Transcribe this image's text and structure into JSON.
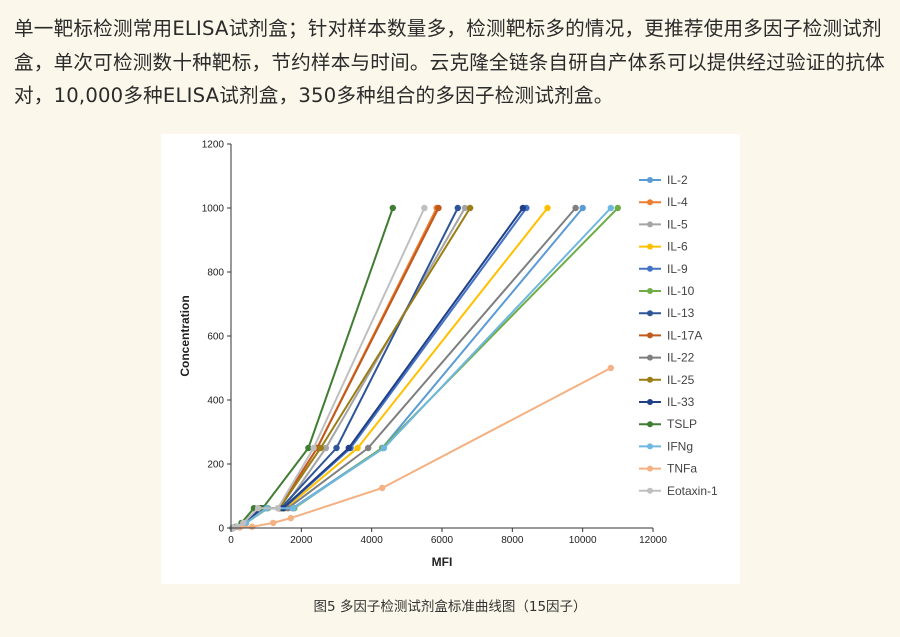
{
  "article": {
    "paragraph": "单一靶标检测常用ELISA试剂盒；针对样本数量多，检测靶标多的情况，更推荐使用多因子检测试剂盒，单次可检测数十种靶标，节约样本与时间。云克隆全链条自研自产体系可以提供经过验证的抗体对，10,000多种ELISA试剂盒，350多种组合的多因子检测试剂盒。"
  },
  "figure": {
    "caption": "图5 多因子检测试剂盒标准曲线图（15因子）"
  },
  "chart_data": {
    "type": "line",
    "title": "",
    "xlabel": "MFI",
    "ylabel": "Concentration",
    "xlim": [
      0,
      12000
    ],
    "ylim": [
      0,
      1200
    ],
    "x_ticks": [
      "0",
      "2000",
      "4000",
      "6000",
      "8000",
      "10000",
      "12000"
    ],
    "y_ticks": [
      "0",
      "200",
      "400",
      "600",
      "800",
      "1000",
      "1200"
    ],
    "legend_position": "right",
    "grid": false,
    "series": [
      {
        "name": "IL-2",
        "color": "#5b9bd5",
        "x": [
          60,
          200,
          420,
          1000,
          1750,
          4300,
          10000
        ],
        "y": [
          0,
          4,
          16,
          62,
          62,
          250,
          1000
        ]
      },
      {
        "name": "IL-4",
        "color": "#ed7d31",
        "x": [
          50,
          170,
          360,
          780,
          1350,
          2450,
          5850
        ],
        "y": [
          0,
          4,
          16,
          62,
          62,
          250,
          1000
        ]
      },
      {
        "name": "IL-5",
        "color": "#a5a5a5",
        "x": [
          55,
          180,
          380,
          850,
          1500,
          2700,
          6650
        ],
        "y": [
          0,
          4,
          16,
          62,
          62,
          250,
          1000
        ]
      },
      {
        "name": "IL-6",
        "color": "#ffc000",
        "x": [
          60,
          190,
          400,
          900,
          1550,
          3600,
          9000
        ],
        "y": [
          0,
          4,
          16,
          62,
          62,
          250,
          1000
        ]
      },
      {
        "name": "IL-9",
        "color": "#4472c4",
        "x": [
          55,
          180,
          390,
          880,
          1500,
          3400,
          8400
        ],
        "y": [
          0,
          4,
          16,
          62,
          62,
          250,
          1000
        ]
      },
      {
        "name": "IL-10",
        "color": "#70ad47",
        "x": [
          60,
          210,
          430,
          1050,
          1800,
          4300,
          11000
        ],
        "y": [
          0,
          4,
          16,
          62,
          62,
          250,
          1000
        ]
      },
      {
        "name": "IL-13",
        "color": "#2e5597",
        "x": [
          55,
          175,
          380,
          820,
          1420,
          3000,
          6450
        ],
        "y": [
          0,
          4,
          16,
          62,
          62,
          250,
          1000
        ]
      },
      {
        "name": "IL-17A",
        "color": "#c05a1e",
        "x": [
          50,
          170,
          360,
          790,
          1360,
          2450,
          5900
        ],
        "y": [
          0,
          4,
          16,
          62,
          62,
          250,
          1000
        ]
      },
      {
        "name": "IL-22",
        "color": "#7f7f7f",
        "x": [
          58,
          195,
          410,
          950,
          1620,
          3900,
          9800
        ],
        "y": [
          0,
          4,
          16,
          62,
          62,
          250,
          1000
        ]
      },
      {
        "name": "IL-25",
        "color": "#9a7d14",
        "x": [
          52,
          172,
          365,
          800,
          1380,
          2550,
          6800
        ],
        "y": [
          0,
          4,
          16,
          62,
          62,
          250,
          1000
        ]
      },
      {
        "name": "IL-33",
        "color": "#1f3f87",
        "x": [
          55,
          178,
          385,
          870,
          1480,
          3350,
          8300
        ],
        "y": [
          0,
          4,
          16,
          62,
          62,
          250,
          1000
        ]
      },
      {
        "name": "TSLP",
        "color": "#3f7d32",
        "x": [
          40,
          140,
          300,
          650,
          900,
          2200,
          4600
        ],
        "y": [
          0,
          4,
          16,
          62,
          62,
          250,
          1000
        ]
      },
      {
        "name": "IFNg",
        "color": "#6fb7e0",
        "x": [
          60,
          205,
          425,
          1020,
          1770,
          4350,
          10800
        ],
        "y": [
          0,
          4,
          16,
          62,
          62,
          250,
          1000
        ]
      },
      {
        "name": "TNFa",
        "color": "#f4b183",
        "x": [
          60,
          250,
          600,
          1200,
          1700,
          4300,
          10800
        ],
        "y": [
          0,
          2,
          4,
          16,
          31,
          125,
          500
        ]
      },
      {
        "name": "Eotaxin-1",
        "color": "#bfbfbf",
        "x": [
          50,
          165,
          350,
          770,
          1330,
          2350,
          5500
        ],
        "y": [
          0,
          4,
          16,
          62,
          62,
          250,
          1000
        ]
      }
    ]
  }
}
